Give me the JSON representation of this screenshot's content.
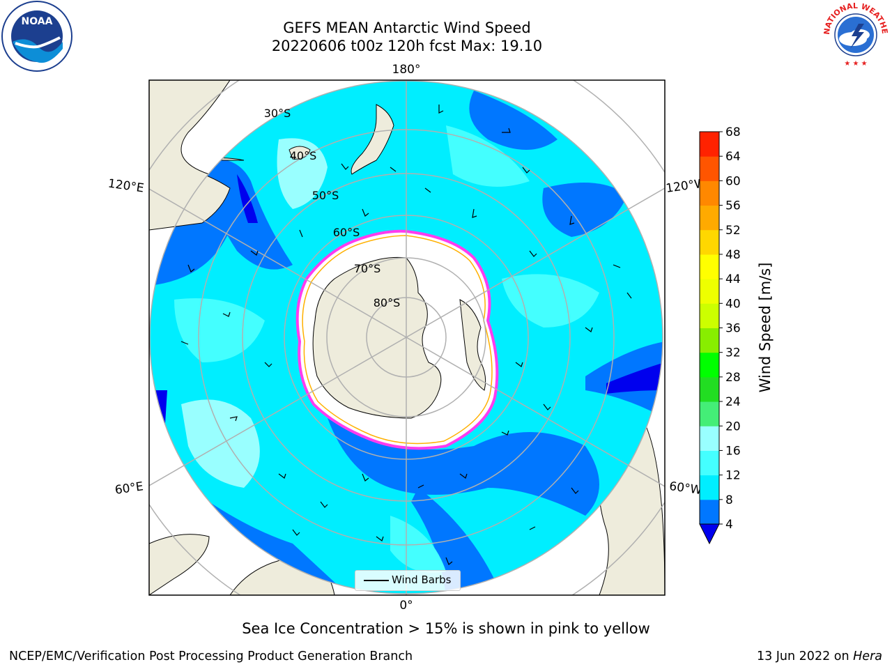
{
  "header": {
    "title_line1": "GEFS MEAN Antarctic Wind Speed",
    "title_line2": "20220606 t00z 120h fcst   Max: 19.10"
  },
  "logos": {
    "left": {
      "icon": "noaa-logo-icon",
      "text": "NOAA"
    },
    "right": {
      "icon": "national-weather-service-logo-icon",
      "text": "NATIONAL WEATHER SERVICE"
    }
  },
  "map": {
    "longitude_labels": {
      "top": "180°",
      "bottom": "0°",
      "upper_left": "120°E",
      "upper_right": "120°W",
      "lower_left": "60°E",
      "lower_right": "60°W"
    },
    "latitude_labels": [
      "30°S",
      "40°S",
      "50°S",
      "60°S",
      "70°S",
      "80°S"
    ],
    "legend": {
      "label": "Wind Barbs"
    },
    "colors": {
      "land": "#eeecdc",
      "ice_shelf": "#ffffff",
      "sea_ice_edge": "#ff3cf0",
      "sea_ice_inner": "#ffb000",
      "grid": "#b0b0b0"
    }
  },
  "colorbar": {
    "label": "Wind Speed [m/s]",
    "ticks": [
      "4",
      "8",
      "12",
      "16",
      "20",
      "24",
      "28",
      "32",
      "36",
      "40",
      "44",
      "48",
      "52",
      "56",
      "60",
      "64",
      "68"
    ],
    "levels": [
      4,
      8,
      12,
      16,
      20,
      24,
      28,
      32,
      36,
      40,
      44,
      48,
      52,
      56,
      60,
      64,
      68
    ],
    "colors": [
      "#0077ff",
      "#00eeff",
      "#44ffff",
      "#99ffff",
      "#44ee77",
      "#22dd22",
      "#00ff00",
      "#88ee00",
      "#ccff00",
      "#eeff00",
      "#ffff00",
      "#ffd700",
      "#ffaa00",
      "#ff8800",
      "#ff5500",
      "#ff2200",
      "#ff0000"
    ],
    "extend_color": "#0000ee"
  },
  "chart_data": {
    "type": "heatmap",
    "variable": "Wind Speed [m/s]",
    "projection": "south-polar-stereographic",
    "max": 19.1,
    "levels": [
      4,
      8,
      12,
      16,
      20,
      24,
      28,
      32,
      36,
      40,
      44,
      48,
      52,
      56,
      60,
      64,
      68
    ]
  },
  "footer": {
    "note": "Sea Ice Concentration > 15% is shown in pink to yellow",
    "left": "NCEP/EMC/Verification Post Processing Product Generation Branch",
    "right_date": "13 Jun 2022 on ",
    "right_host": "Hera"
  }
}
